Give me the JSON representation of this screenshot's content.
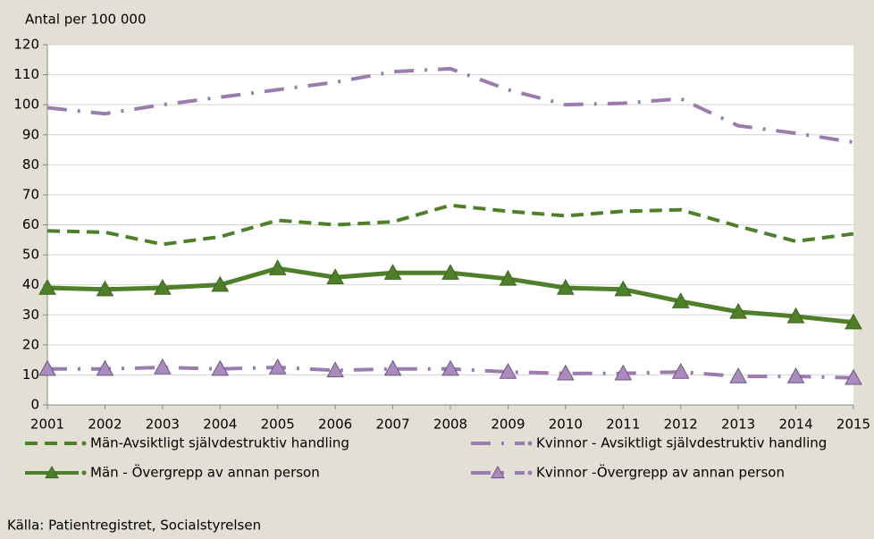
{
  "chart_data": {
    "type": "line",
    "y_axis_label": "Antal per 100 000",
    "source": "Källa: Patientregistret, Socialstyrelsen",
    "x": [
      2001,
      2002,
      2003,
      2004,
      2005,
      2006,
      2007,
      2008,
      2009,
      2010,
      2011,
      2012,
      2013,
      2014,
      2015
    ],
    "xlim": [
      2001,
      2015
    ],
    "xticks": [
      2001,
      2002,
      2003,
      2004,
      2005,
      2006,
      2007,
      2008,
      2009,
      2010,
      2011,
      2012,
      2013,
      2014,
      2015
    ],
    "ylim": [
      0,
      120
    ],
    "yticks": [
      0,
      10,
      20,
      30,
      40,
      50,
      60,
      70,
      80,
      90,
      100,
      110,
      120
    ],
    "grid": true,
    "legend": "bottom",
    "series": [
      {
        "name": "Män-Avsiktligt självdestruktiv handling",
        "color": "#4f7f2a",
        "dash": "dashed",
        "marker": "none",
        "values": [
          58,
          57.5,
          53.5,
          56,
          61.5,
          60,
          61,
          66.5,
          64.5,
          63,
          64.5,
          65,
          59.5,
          54.5,
          57
        ]
      },
      {
        "name": "Kvinnor - Avsiktligt självdestruktiv handling",
        "color": "#9a7cae",
        "dash": "dashdot",
        "marker": "none",
        "values": [
          99,
          97,
          100,
          102.5,
          105,
          107.5,
          111,
          112,
          105,
          100,
          100.5,
          102,
          93,
          90.5,
          87.5
        ]
      },
      {
        "name": "Män - Övergrepp av annan person",
        "color": "#4f7f2a",
        "dash": "solid",
        "marker": "triangle",
        "values": [
          39,
          38.5,
          39,
          40,
          45.5,
          42.5,
          44,
          44,
          42,
          39,
          38.5,
          34.5,
          31,
          29.5,
          27.5
        ]
      },
      {
        "name": "Kvinnor -Övergrepp av annan person",
        "color": "#9a7cae",
        "dash": "dashdot",
        "marker": "triangle",
        "values": [
          12,
          12,
          12.5,
          12,
          12.5,
          11.5,
          12,
          12,
          11,
          10.5,
          10.5,
          11,
          9.5,
          9.5,
          9
        ]
      }
    ]
  }
}
